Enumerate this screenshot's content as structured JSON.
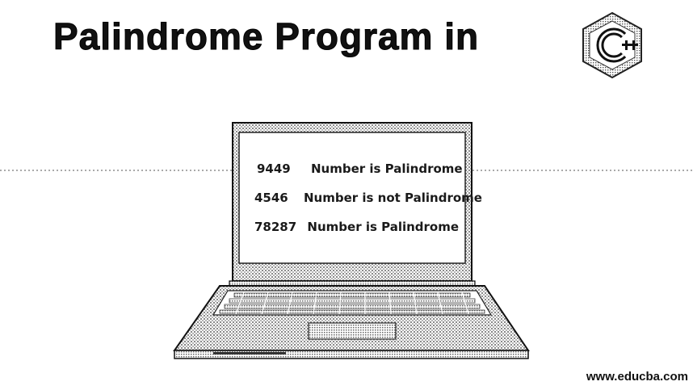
{
  "header": {
    "title": "Palindrome Program in",
    "logo_icon": "c-language-logo-icon"
  },
  "screen": {
    "rows": [
      {
        "number": "9449",
        "result": "Number is Palindrome"
      },
      {
        "number": "4546",
        "result": "Number is not Palindrome"
      },
      {
        "number": "78287",
        "result": "Number is Palindrome"
      }
    ]
  },
  "footer": {
    "website": "www.educba.com"
  },
  "colors": {
    "ink": "#111111",
    "hatch": "#888888",
    "background": "#ffffff"
  }
}
